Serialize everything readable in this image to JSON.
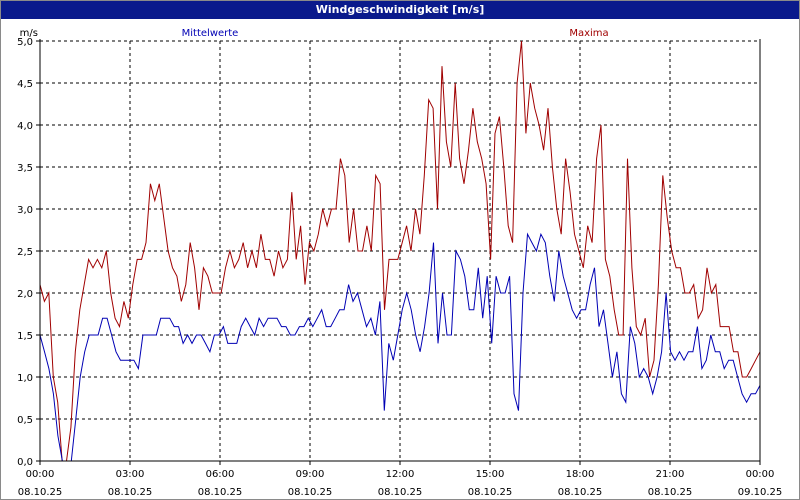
{
  "window": {
    "title": "Windgeschwindigkeit [m/s]"
  },
  "colors": {
    "title_bg": "#0a1a8c",
    "mean": "#0000b4",
    "max": "#a00000",
    "grid": "#000000",
    "axis": "#000000"
  },
  "chart_data": {
    "type": "line",
    "title": "Windgeschwindigkeit [m/s]",
    "ylabel": "m/s",
    "ylim": [
      0,
      5
    ],
    "xlim": [
      0,
      24
    ],
    "grid": true,
    "legend": "top",
    "y_ticks": [
      "0,0",
      "0,5",
      "1,0",
      "1,5",
      "2,0",
      "2,5",
      "3,0",
      "3,5",
      "4,0",
      "4,5",
      "5,0"
    ],
    "x_ticks": [
      {
        "time": "00:00",
        "date": "08.10.25"
      },
      {
        "time": "03:00",
        "date": "08.10.25"
      },
      {
        "time": "06:00",
        "date": "08.10.25"
      },
      {
        "time": "09:00",
        "date": "08.10.25"
      },
      {
        "time": "12:00",
        "date": "08.10.25"
      },
      {
        "time": "15:00",
        "date": "08.10.25"
      },
      {
        "time": "18:00",
        "date": "08.10.25"
      },
      {
        "time": "21:00",
        "date": "08.10.25"
      },
      {
        "time": "00:00",
        "date": "09.10.25"
      }
    ],
    "series": [
      {
        "name": "Mittelwerte",
        "color": "#0000b4",
        "values": [
          1.5,
          1.3,
          1.1,
          0.8,
          0.3,
          0.0,
          0.0,
          0.0,
          0.5,
          1.0,
          1.3,
          1.5,
          1.5,
          1.5,
          1.7,
          1.7,
          1.5,
          1.3,
          1.2,
          1.2,
          1.2,
          1.2,
          1.1,
          1.5,
          1.5,
          1.5,
          1.5,
          1.7,
          1.7,
          1.7,
          1.6,
          1.6,
          1.4,
          1.5,
          1.4,
          1.5,
          1.5,
          1.4,
          1.3,
          1.5,
          1.5,
          1.6,
          1.4,
          1.4,
          1.4,
          1.6,
          1.7,
          1.6,
          1.5,
          1.7,
          1.6,
          1.7,
          1.7,
          1.7,
          1.6,
          1.6,
          1.5,
          1.5,
          1.6,
          1.6,
          1.7,
          1.6,
          1.7,
          1.8,
          1.6,
          1.6,
          1.7,
          1.8,
          1.8,
          2.1,
          1.9,
          2.0,
          1.8,
          1.6,
          1.7,
          1.5,
          1.9,
          0.6,
          1.4,
          1.2,
          1.5,
          1.8,
          2.0,
          1.8,
          1.5,
          1.3,
          1.6,
          2.0,
          2.6,
          1.4,
          2.0,
          1.5,
          1.5,
          2.5,
          2.4,
          2.2,
          1.8,
          1.8,
          2.3,
          1.7,
          2.2,
          1.4,
          2.2,
          2.0,
          2.0,
          2.2,
          0.8,
          0.6,
          2.0,
          2.7,
          2.6,
          2.5,
          2.7,
          2.6,
          2.2,
          1.9,
          2.5,
          2.2,
          2.0,
          1.8,
          1.7,
          1.8,
          1.8,
          2.1,
          2.3,
          1.6,
          1.8,
          1.4,
          1.0,
          1.3,
          0.8,
          0.7,
          1.6,
          1.4,
          1.0,
          1.1,
          1.0,
          0.8,
          1.0,
          1.3,
          2.0,
          1.3,
          1.2,
          1.3,
          1.2,
          1.3,
          1.3,
          1.6,
          1.1,
          1.2,
          1.5,
          1.3,
          1.3,
          1.1,
          1.2,
          1.2,
          1.0,
          0.8,
          0.7,
          0.8,
          0.8,
          0.9
        ]
      },
      {
        "name": "Maxima",
        "color": "#a00000",
        "values": [
          2.1,
          1.9,
          2.0,
          1.0,
          0.7,
          0.0,
          0.0,
          0.4,
          1.3,
          1.8,
          2.1,
          2.4,
          2.3,
          2.4,
          2.3,
          2.5,
          2.0,
          1.7,
          1.6,
          1.9,
          1.7,
          2.1,
          2.4,
          2.4,
          2.6,
          3.3,
          3.1,
          3.3,
          2.9,
          2.5,
          2.3,
          2.2,
          1.9,
          2.1,
          2.6,
          2.3,
          1.8,
          2.3,
          2.2,
          2.0,
          2.0,
          2.0,
          2.3,
          2.5,
          2.3,
          2.4,
          2.6,
          2.3,
          2.5,
          2.3,
          2.7,
          2.4,
          2.4,
          2.2,
          2.5,
          2.3,
          2.4,
          3.2,
          2.4,
          2.8,
          2.1,
          2.6,
          2.5,
          2.7,
          3.0,
          2.8,
          3.0,
          3.0,
          3.6,
          3.4,
          2.6,
          3.0,
          2.5,
          2.5,
          2.8,
          2.5,
          3.4,
          3.3,
          1.8,
          2.4,
          2.4,
          2.4,
          2.6,
          2.8,
          2.5,
          3.0,
          2.7,
          3.4,
          4.3,
          4.2,
          3.0,
          4.7,
          3.8,
          3.5,
          4.5,
          3.6,
          3.3,
          3.7,
          4.2,
          3.8,
          3.6,
          3.3,
          2.4,
          3.9,
          4.1,
          3.5,
          2.8,
          2.6,
          4.5,
          5.0,
          3.9,
          4.5,
          4.2,
          4.0,
          3.7,
          4.2,
          3.5,
          3.0,
          2.7,
          3.6,
          3.2,
          2.7,
          2.5,
          2.3,
          2.8,
          2.6,
          3.6,
          4.0,
          2.4,
          2.2,
          1.8,
          1.5,
          1.5,
          3.6,
          2.3,
          1.6,
          1.5,
          1.7,
          1.0,
          1.2,
          2.1,
          3.4,
          2.9,
          2.5,
          2.3,
          2.3,
          2.0,
          2.0,
          2.1,
          1.7,
          1.8,
          2.3,
          2.0,
          2.1,
          1.6,
          1.6,
          1.6,
          1.3,
          1.3,
          1.0,
          1.0,
          1.1,
          1.2,
          1.3
        ]
      }
    ]
  }
}
